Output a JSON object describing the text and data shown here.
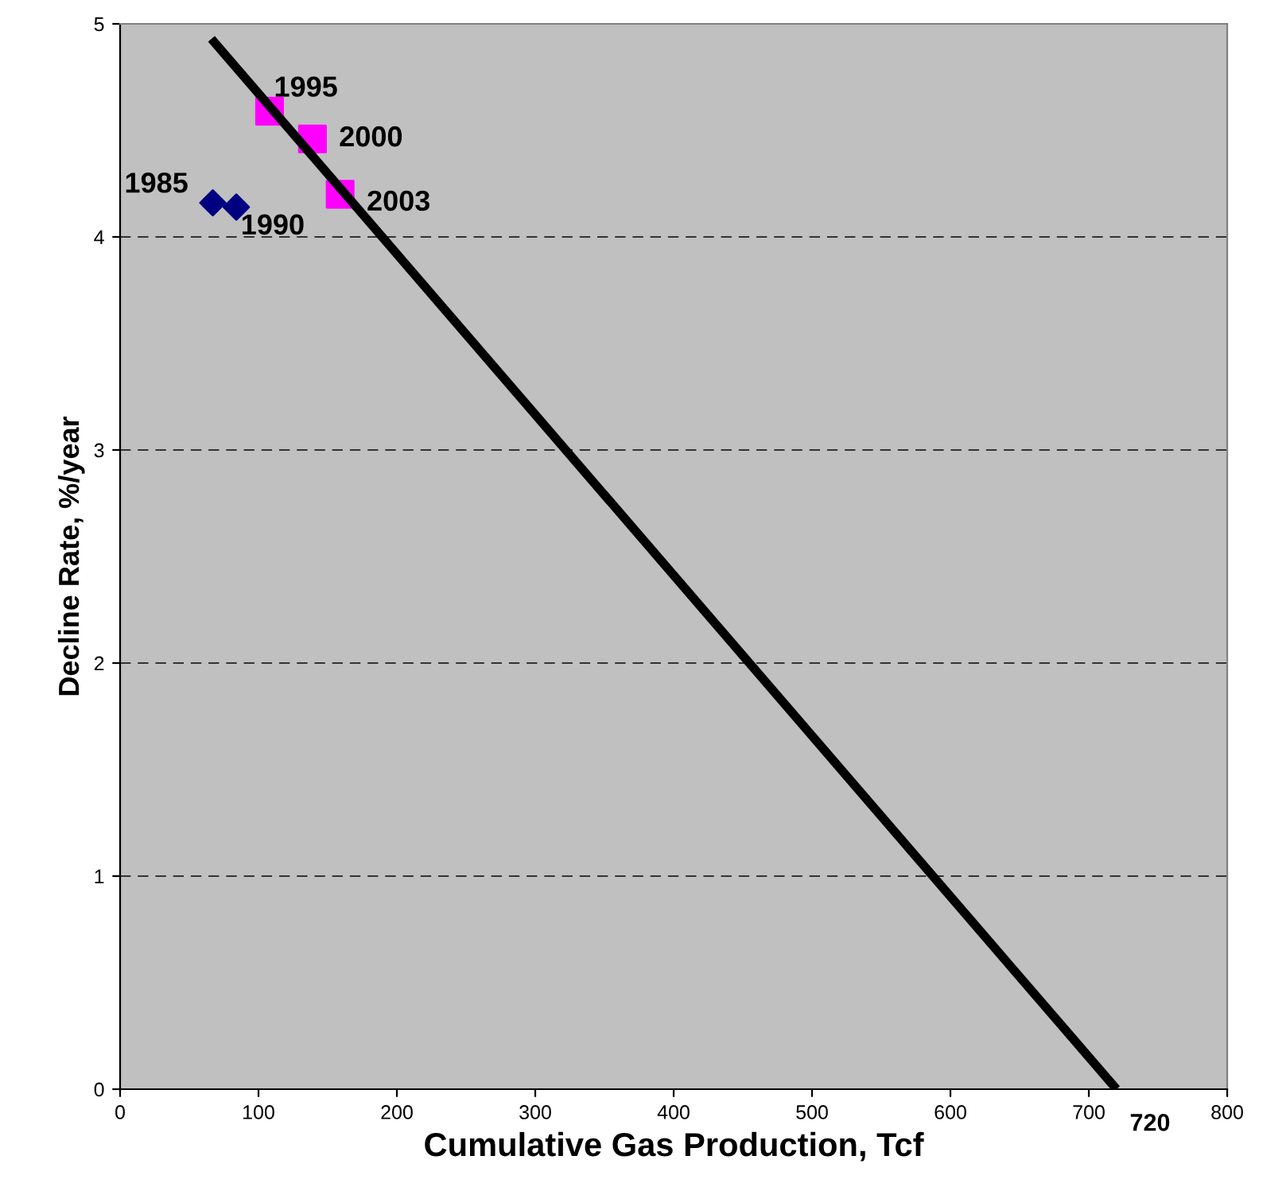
{
  "chart_data": {
    "type": "scatter",
    "xlabel": "Cumulative Gas Production, Tcf",
    "ylabel": "Decline Rate, %/year",
    "xlim": [
      0,
      800
    ],
    "xticks": [
      0,
      100,
      200,
      300,
      400,
      500,
      600,
      700,
      800
    ],
    "ylim": [
      0,
      5
    ],
    "yticks": [
      0,
      1,
      2,
      3,
      4,
      5
    ],
    "grid": "y",
    "legend": false,
    "series": [
      {
        "marker": "diamond",
        "color": "#000080",
        "x": [
          67,
          84
        ],
        "values": [
          4.16,
          4.14
        ]
      },
      {
        "marker": "square",
        "color": "#ff00ff",
        "x": [
          108,
          139,
          159
        ],
        "values": [
          4.59,
          4.46,
          4.2
        ]
      },
      {
        "type": "line",
        "marker": "none",
        "line_style": "solid",
        "color": "#000000",
        "x": [
          66,
          720
        ],
        "values": [
          4.93,
          0
        ]
      }
    ],
    "annotations": [
      {
        "text": "1985",
        "x": 67,
        "y": 4.16
      },
      {
        "text": "1990",
        "x": 84,
        "y": 4.14
      },
      {
        "text": "1995",
        "x": 108,
        "y": 4.59
      },
      {
        "text": "2000",
        "x": 139,
        "y": 4.46
      },
      {
        "text": "2003",
        "x": 159,
        "y": 4.2
      },
      {
        "text": "720",
        "x": 720,
        "y": 0
      }
    ]
  }
}
